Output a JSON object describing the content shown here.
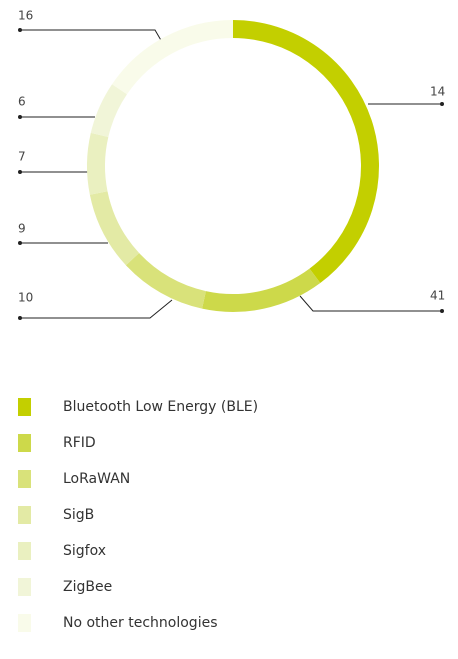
{
  "chart_data": {
    "type": "donut",
    "series": [
      {
        "name": "Bluetooth Low Energy (BLE)",
        "color": "#c3cf00",
        "value": 41
      },
      {
        "name": "RFID",
        "color": "#cdd94a",
        "value": 14
      },
      {
        "name": "LoRaWAN",
        "color": "#d9e27a",
        "value": 10
      },
      {
        "name": "SigB",
        "color": "#e3eaa5",
        "value": 9
      },
      {
        "name": "Sigfox",
        "color": "#eaf0c0",
        "value": 7
      },
      {
        "name": "ZigBee",
        "color": "#f1f5d8",
        "value": 6
      },
      {
        "name": "No other technologies",
        "color": "#f9fbea",
        "value": 16
      }
    ]
  }
}
